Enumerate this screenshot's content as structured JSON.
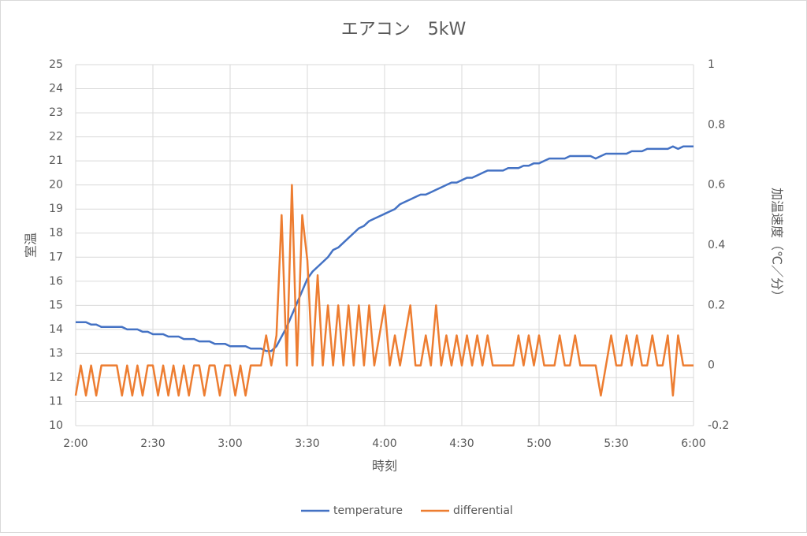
{
  "chart_data": {
    "type": "line",
    "title": "エアコン　5kW",
    "x_label": "時刻",
    "y_label": "室温",
    "y2_label": "加温速度（℃／分）",
    "x": [
      "2:00",
      "2:02",
      "2:04",
      "2:06",
      "2:08",
      "2:10",
      "2:12",
      "2:14",
      "2:16",
      "2:18",
      "2:20",
      "2:22",
      "2:24",
      "2:26",
      "2:28",
      "2:30",
      "2:32",
      "2:34",
      "2:36",
      "2:38",
      "2:40",
      "2:42",
      "2:44",
      "2:46",
      "2:48",
      "2:50",
      "2:52",
      "2:54",
      "2:56",
      "2:58",
      "3:00",
      "3:02",
      "3:04",
      "3:06",
      "3:08",
      "3:10",
      "3:12",
      "3:14",
      "3:16",
      "3:18",
      "3:20",
      "3:22",
      "3:24",
      "3:26",
      "3:28",
      "3:30",
      "3:32",
      "3:34",
      "3:36",
      "3:38",
      "3:40",
      "3:42",
      "3:44",
      "3:46",
      "3:48",
      "3:50",
      "3:52",
      "3:54",
      "3:56",
      "3:58",
      "4:00",
      "4:02",
      "4:04",
      "4:06",
      "4:08",
      "4:10",
      "4:12",
      "4:14",
      "4:16",
      "4:18",
      "4:20",
      "4:22",
      "4:24",
      "4:26",
      "4:28",
      "4:30",
      "4:32",
      "4:34",
      "4:36",
      "4:38",
      "4:40",
      "4:42",
      "4:44",
      "4:46",
      "4:48",
      "4:50",
      "4:52",
      "4:54",
      "4:56",
      "4:58",
      "5:00",
      "5:02",
      "5:04",
      "5:06",
      "5:08",
      "5:10",
      "5:12",
      "5:14",
      "5:16",
      "5:18",
      "5:20",
      "5:22",
      "5:24",
      "5:26",
      "5:28",
      "5:30",
      "5:32",
      "5:34",
      "5:36",
      "5:38",
      "5:40",
      "5:42",
      "5:44",
      "5:46",
      "5:48",
      "5:50",
      "5:52",
      "5:54",
      "5:56",
      "5:58",
      "6:00"
    ],
    "series": [
      {
        "name": "temperature",
        "color": "#4472c4",
        "axis": "y",
        "values": [
          14.3,
          14.3,
          14.3,
          14.2,
          14.2,
          14.1,
          14.1,
          14.1,
          14.1,
          14.1,
          14.0,
          14.0,
          14.0,
          13.9,
          13.9,
          13.8,
          13.8,
          13.8,
          13.7,
          13.7,
          13.7,
          13.6,
          13.6,
          13.6,
          13.5,
          13.5,
          13.5,
          13.4,
          13.4,
          13.4,
          13.3,
          13.3,
          13.3,
          13.3,
          13.2,
          13.2,
          13.2,
          13.1,
          13.1,
          13.3,
          13.7,
          14.1,
          14.6,
          15.1,
          15.6,
          16.1,
          16.4,
          16.6,
          16.8,
          17.0,
          17.3,
          17.4,
          17.6,
          17.8,
          18.0,
          18.2,
          18.3,
          18.5,
          18.6,
          18.7,
          18.8,
          18.9,
          19.0,
          19.2,
          19.3,
          19.4,
          19.5,
          19.6,
          19.6,
          19.7,
          19.8,
          19.9,
          20.0,
          20.1,
          20.1,
          20.2,
          20.3,
          20.3,
          20.4,
          20.5,
          20.6,
          20.6,
          20.6,
          20.6,
          20.7,
          20.7,
          20.7,
          20.8,
          20.8,
          20.9,
          20.9,
          21.0,
          21.1,
          21.1,
          21.1,
          21.1,
          21.2,
          21.2,
          21.2,
          21.2,
          21.2,
          21.1,
          21.2,
          21.3,
          21.3,
          21.3,
          21.3,
          21.3,
          21.4,
          21.4,
          21.4,
          21.5,
          21.5,
          21.5,
          21.5,
          21.5,
          21.6,
          21.5,
          21.6,
          21.6,
          21.6
        ]
      },
      {
        "name": "differential",
        "color": "#ed7d31",
        "axis": "y2",
        "values": [
          -0.1,
          0,
          -0.1,
          0,
          -0.1,
          0,
          0,
          0,
          0,
          -0.1,
          0,
          -0.1,
          0,
          -0.1,
          0,
          0,
          -0.1,
          0,
          -0.1,
          0,
          -0.1,
          0,
          -0.1,
          0,
          0,
          -0.1,
          0,
          0,
          -0.1,
          0,
          0,
          -0.1,
          0,
          -0.1,
          0,
          0,
          0,
          0.1,
          0,
          0.1,
          0.5,
          0,
          0.6,
          0,
          0.5,
          0.35,
          0,
          0.3,
          0,
          0.2,
          0,
          0.2,
          0,
          0.2,
          0,
          0.2,
          0,
          0.2,
          0,
          0.1,
          0.2,
          0,
          0.1,
          0,
          0.1,
          0.2,
          0,
          0,
          0.1,
          0,
          0.2,
          0,
          0.1,
          0,
          0.1,
          0,
          0.1,
          0,
          0.1,
          0,
          0.1,
          0,
          0,
          0,
          0,
          0,
          0.1,
          0,
          0.1,
          0,
          0.1,
          0,
          0,
          0,
          0.1,
          0,
          0,
          0.1,
          0,
          0,
          0,
          0,
          -0.1,
          0,
          0.1,
          0,
          0,
          0.1,
          0,
          0.1,
          0,
          0,
          0.1,
          0,
          0,
          0.1,
          -0.1,
          0.1,
          0,
          0,
          0
        ]
      }
    ],
    "xlim": [
      "2:00",
      "6:00"
    ],
    "xticks": [
      "2:00",
      "2:30",
      "3:00",
      "3:30",
      "4:00",
      "4:30",
      "5:00",
      "5:30",
      "6:00"
    ],
    "ylim": [
      10,
      25
    ],
    "yticks": [
      10,
      11,
      12,
      13,
      14,
      15,
      16,
      17,
      18,
      19,
      20,
      21,
      22,
      23,
      24,
      25
    ],
    "y2lim": [
      -0.2,
      1
    ],
    "y2ticks": [
      -0.2,
      0,
      0.2,
      0.4,
      0.6,
      0.8,
      1
    ],
    "grid": true,
    "legend": "bottom"
  }
}
